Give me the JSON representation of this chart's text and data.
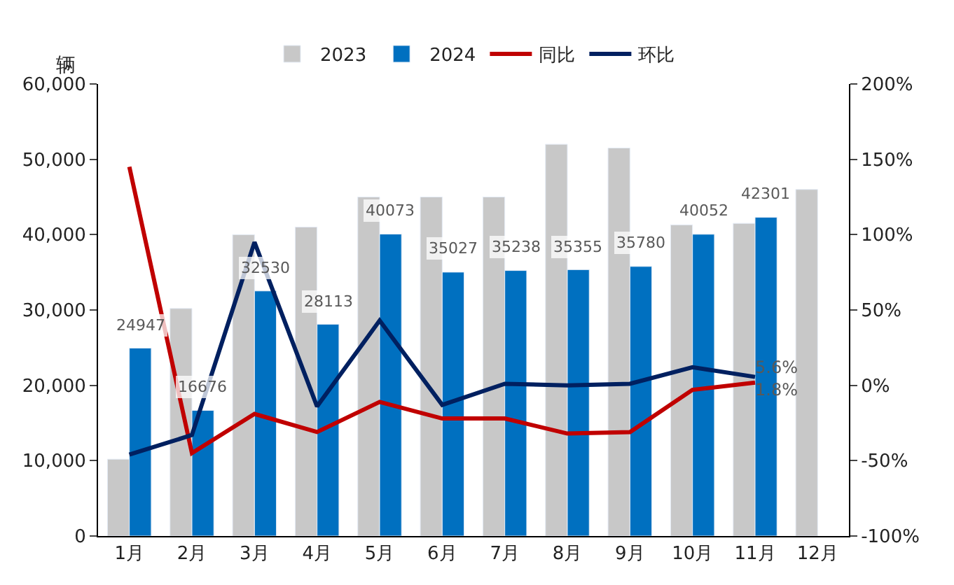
{
  "chart_data": {
    "type": "bar",
    "ylabel": "辆",
    "categories": [
      "1月",
      "2月",
      "3月",
      "4月",
      "5月",
      "6月",
      "7月",
      "8月",
      "9月",
      "10月",
      "11月",
      "12月"
    ],
    "series": [
      {
        "name": "2023",
        "type": "bar",
        "color": "#c8c8c8",
        "values": [
          10200,
          30200,
          40000,
          41000,
          45000,
          45000,
          45000,
          52000,
          51500,
          41300,
          41500,
          46000
        ]
      },
      {
        "name": "2024",
        "type": "bar",
        "color": "#0070c0",
        "values": [
          24947,
          16676,
          32530,
          28113,
          40073,
          35027,
          35238,
          35355,
          35780,
          40052,
          42301,
          null
        ],
        "value_labels": [
          "24947",
          "16676",
          "32530",
          "28113",
          "40073",
          "35027",
          "35238",
          "35355",
          "35780",
          "40052",
          "42301",
          null
        ]
      },
      {
        "name": "同比",
        "type": "line",
        "axis": "y2",
        "color": "#c00000",
        "values": [
          145,
          -45,
          -19,
          -31,
          -11,
          -22,
          -22,
          -32,
          -31,
          -3,
          1.8,
          null
        ],
        "value_labels": [
          null,
          null,
          null,
          null,
          null,
          null,
          null,
          null,
          null,
          null,
          "1.8%",
          null
        ]
      },
      {
        "name": "环比",
        "type": "line",
        "axis": "y2",
        "color": "#002060",
        "values": [
          -46,
          -33,
          95,
          -14,
          43,
          -13,
          1,
          0,
          1,
          12,
          5.6,
          null
        ],
        "value_labels": [
          null,
          null,
          null,
          null,
          null,
          null,
          null,
          null,
          null,
          null,
          "5.6%",
          null
        ]
      }
    ],
    "ylim": [
      0,
      60000
    ],
    "yticks": [
      {
        "value": 0,
        "label": "0"
      },
      {
        "value": 10000,
        "label": "10,000"
      },
      {
        "value": 20000,
        "label": "20,000"
      },
      {
        "value": 30000,
        "label": "30,000"
      },
      {
        "value": 40000,
        "label": "40,000"
      },
      {
        "value": 50000,
        "label": "50,000"
      },
      {
        "value": 60000,
        "label": "60,000"
      }
    ],
    "y2lim": [
      -100,
      200
    ],
    "y2ticks": [
      {
        "value": -100,
        "label": "-100%"
      },
      {
        "value": -50,
        "label": "-50%"
      },
      {
        "value": 0,
        "label": "0%"
      },
      {
        "value": 50,
        "label": "50%"
      },
      {
        "value": 100,
        "label": "100%"
      },
      {
        "value": 150,
        "label": "150%"
      },
      {
        "value": 200,
        "label": "200%"
      }
    ],
    "legend": "top",
    "marker": "none",
    "line_style": "solid"
  }
}
